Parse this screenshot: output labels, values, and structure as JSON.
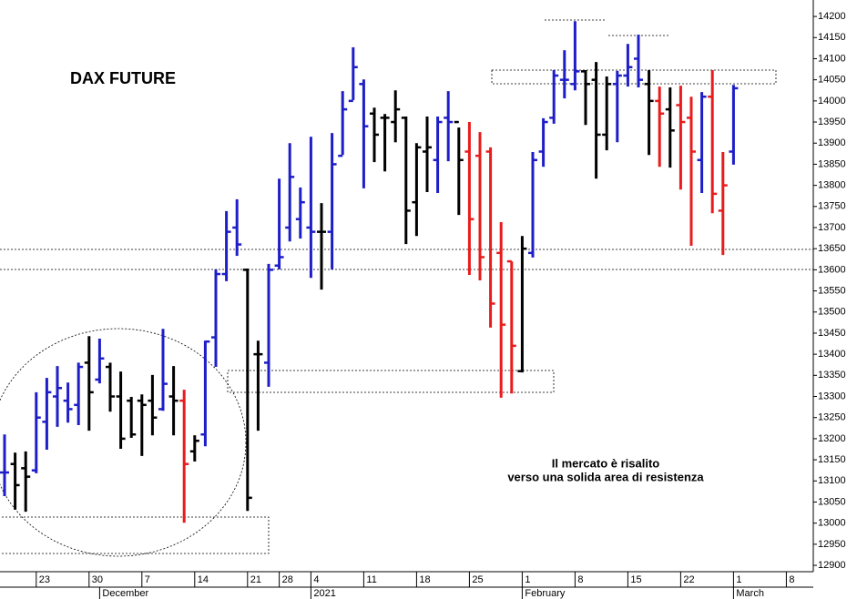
{
  "chart_data": {
    "type": "ohlc",
    "title": "DAX FUTURE",
    "annotations": [
      "Il mercato è risalito",
      "verso una solida area di resistenza"
    ],
    "categories": [
      null,
      null,
      null,
      "23",
      null,
      null,
      null,
      null,
      "30",
      null,
      null,
      null,
      null,
      "7",
      null,
      null,
      null,
      null,
      "14",
      null,
      null,
      null,
      null,
      "21",
      null,
      null,
      "28",
      null,
      null,
      "4",
      null,
      null,
      null,
      null,
      "11",
      null,
      null,
      null,
      null,
      "18",
      null,
      null,
      null,
      null,
      "25",
      null,
      null,
      null,
      null,
      "1",
      null,
      null,
      null,
      null,
      "8",
      null,
      null,
      null,
      null,
      "15",
      null,
      null,
      null,
      null,
      "22",
      null,
      null,
      null,
      null,
      "1",
      null,
      null,
      null,
      null,
      "8",
      null
    ],
    "months": [
      null,
      null,
      null,
      null,
      null,
      null,
      null,
      null,
      null,
      "December",
      null,
      null,
      null,
      null,
      null,
      null,
      null,
      null,
      null,
      null,
      null,
      null,
      null,
      null,
      null,
      null,
      null,
      null,
      null,
      "2021",
      null,
      null,
      null,
      null,
      null,
      null,
      null,
      null,
      null,
      null,
      null,
      null,
      null,
      null,
      null,
      null,
      null,
      null,
      null,
      "February",
      null,
      null,
      null,
      null,
      null,
      null,
      null,
      null,
      null,
      null,
      null,
      null,
      null,
      null,
      null,
      null,
      null,
      null,
      null,
      "March",
      null,
      null,
      null,
      null,
      null,
      null
    ],
    "open": [
      13120,
      13140,
      13130,
      13125,
      13240,
      13300,
      13290,
      13280,
      13380,
      13340,
      13370,
      13300,
      13290,
      13290,
      13290,
      13270,
      13300,
      13290,
      13170,
      13210,
      13440,
      13590,
      13700,
      13600,
      13400,
      13380,
      13610,
      13700,
      13720,
      13700,
      13690,
      13690,
      13870,
      14000,
      14040,
      13970,
      13960,
      13950,
      13960,
      13760,
      13880,
      13860,
      13960,
      13950,
      13880,
      13870,
      13880,
      13640,
      13620,
      13360,
      13640,
      13880,
      13960,
      14050,
      14040,
      14070,
      14050,
      13920,
      14040,
      14060,
      14100,
      14040,
      14000,
      13980,
      13990,
      13960,
      13860,
      14010,
      13740,
      13880,
      null,
      null,
      null,
      null,
      null,
      null
    ],
    "high": [
      13210,
      13167,
      13170,
      13310,
      13344,
      13372,
      13333,
      13380,
      13443,
      13437,
      13380,
      13359,
      13299,
      13305,
      13351,
      13460,
      13372,
      13316,
      13208,
      13432,
      13601,
      13739,
      13767,
      13603,
      13432,
      13614,
      13816,
      13900,
      13795,
      13915,
      13758,
      13924,
      14023,
      14127,
      14051,
      13984,
      13969,
      14025,
      13963,
      13900,
      13963,
      13963,
      14023,
      13937,
      13950,
      13926,
      13890,
      13713,
      13620,
      13680,
      13879,
      13959,
      14073,
      14120,
      14189,
      14073,
      14092,
      14058,
      14071,
      14135,
      14157,
      14073,
      14034,
      14032,
      14036,
      14010,
      14021,
      14073,
      13879,
      14038,
      null,
      null,
      null,
      null,
      null,
      null
    ],
    "low": [
      13064,
      13032,
      13027,
      13118,
      13174,
      13228,
      13238,
      13232,
      13219,
      13331,
      13264,
      13176,
      13202,
      13159,
      13208,
      13266,
      13208,
      13001,
      13146,
      13182,
      13370,
      13573,
      13633,
      13029,
      13219,
      13323,
      13601,
      13667,
      13674,
      13581,
      13553,
      13601,
      13872,
      14002,
      13793,
      13855,
      13833,
      13902,
      13661,
      13680,
      13784,
      13782,
      13857,
      13730,
      13588,
      13575,
      13463,
      13297,
      13307,
      13357,
      13629,
      13844,
      13946,
      14006,
      14025,
      13943,
      13816,
      13883,
      13902,
      14034,
      14032,
      13872,
      13844,
      13842,
      13790,
      13657,
      13782,
      13734,
      13635,
      13849,
      null,
      null,
      null,
      null,
      null,
      null
    ],
    "close": [
      13120,
      13090,
      13110,
      13250,
      13310,
      13320,
      13270,
      13370,
      13310,
      13390,
      13300,
      13200,
      13210,
      13280,
      13250,
      13330,
      13290,
      13140,
      13195,
      13430,
      13590,
      13690,
      13660,
      13060,
      13400,
      13600,
      13630,
      13820,
      13760,
      13690,
      13690,
      13850,
      13980,
      14080,
      13940,
      13920,
      13960,
      13980,
      13740,
      13890,
      13890,
      13950,
      13950,
      13860,
      13720,
      13630,
      13520,
      13470,
      13420,
      13650,
      13860,
      13950,
      14060,
      14050,
      14070,
      14040,
      13920,
      14040,
      14060,
      14080,
      14050,
      14000,
      13970,
      13930,
      13950,
      13880,
      14010,
      13780,
      13800,
      14030,
      null,
      null,
      null,
      null,
      null,
      null
    ],
    "colors": [
      "#1e1ec8",
      "#000000",
      "#000000",
      "#1e1ec8",
      "#1e1ec8",
      "#1e1ec8",
      "#1e1ec8",
      "#1e1ec8",
      "#000000",
      "#1e1ec8",
      "#000000",
      "#000000",
      "#000000",
      "#000000",
      "#000000",
      "#1e1ec8",
      "#000000",
      "#e81c1c",
      "#000000",
      "#1e1ec8",
      "#1e1ec8",
      "#1e1ec8",
      "#1e1ec8",
      "#000000",
      "#000000",
      "#1e1ec8",
      "#1e1ec8",
      "#1e1ec8",
      "#1e1ec8",
      "#1e1ec8",
      "#000000",
      "#1e1ec8",
      "#1e1ec8",
      "#1e1ec8",
      "#1e1ec8",
      "#000000",
      "#000000",
      "#000000",
      "#000000",
      "#000000",
      "#000000",
      "#1e1ec8",
      "#1e1ec8",
      "#000000",
      "#e81c1c",
      "#e81c1c",
      "#e81c1c",
      "#e81c1c",
      "#e81c1c",
      "#000000",
      "#1e1ec8",
      "#1e1ec8",
      "#1e1ec8",
      "#1e1ec8",
      "#1e1ec8",
      "#000000",
      "#000000",
      "#000000",
      "#1e1ec8",
      "#1e1ec8",
      "#1e1ec8",
      "#000000",
      "#e81c1c",
      "#000000",
      "#e81c1c",
      "#e81c1c",
      "#1e1ec8",
      "#e81c1c",
      "#e81c1c",
      "#1e1ec8",
      null,
      null,
      null,
      null,
      null,
      null
    ],
    "ylim": [
      12885,
      14239
    ],
    "yticks": [
      12900,
      12950,
      13000,
      13050,
      13100,
      13150,
      13200,
      13250,
      13300,
      13350,
      13400,
      13450,
      13500,
      13550,
      13600,
      13650,
      13700,
      13750,
      13800,
      13850,
      13900,
      13950,
      14000,
      14050,
      14100,
      14150,
      14200
    ]
  }
}
